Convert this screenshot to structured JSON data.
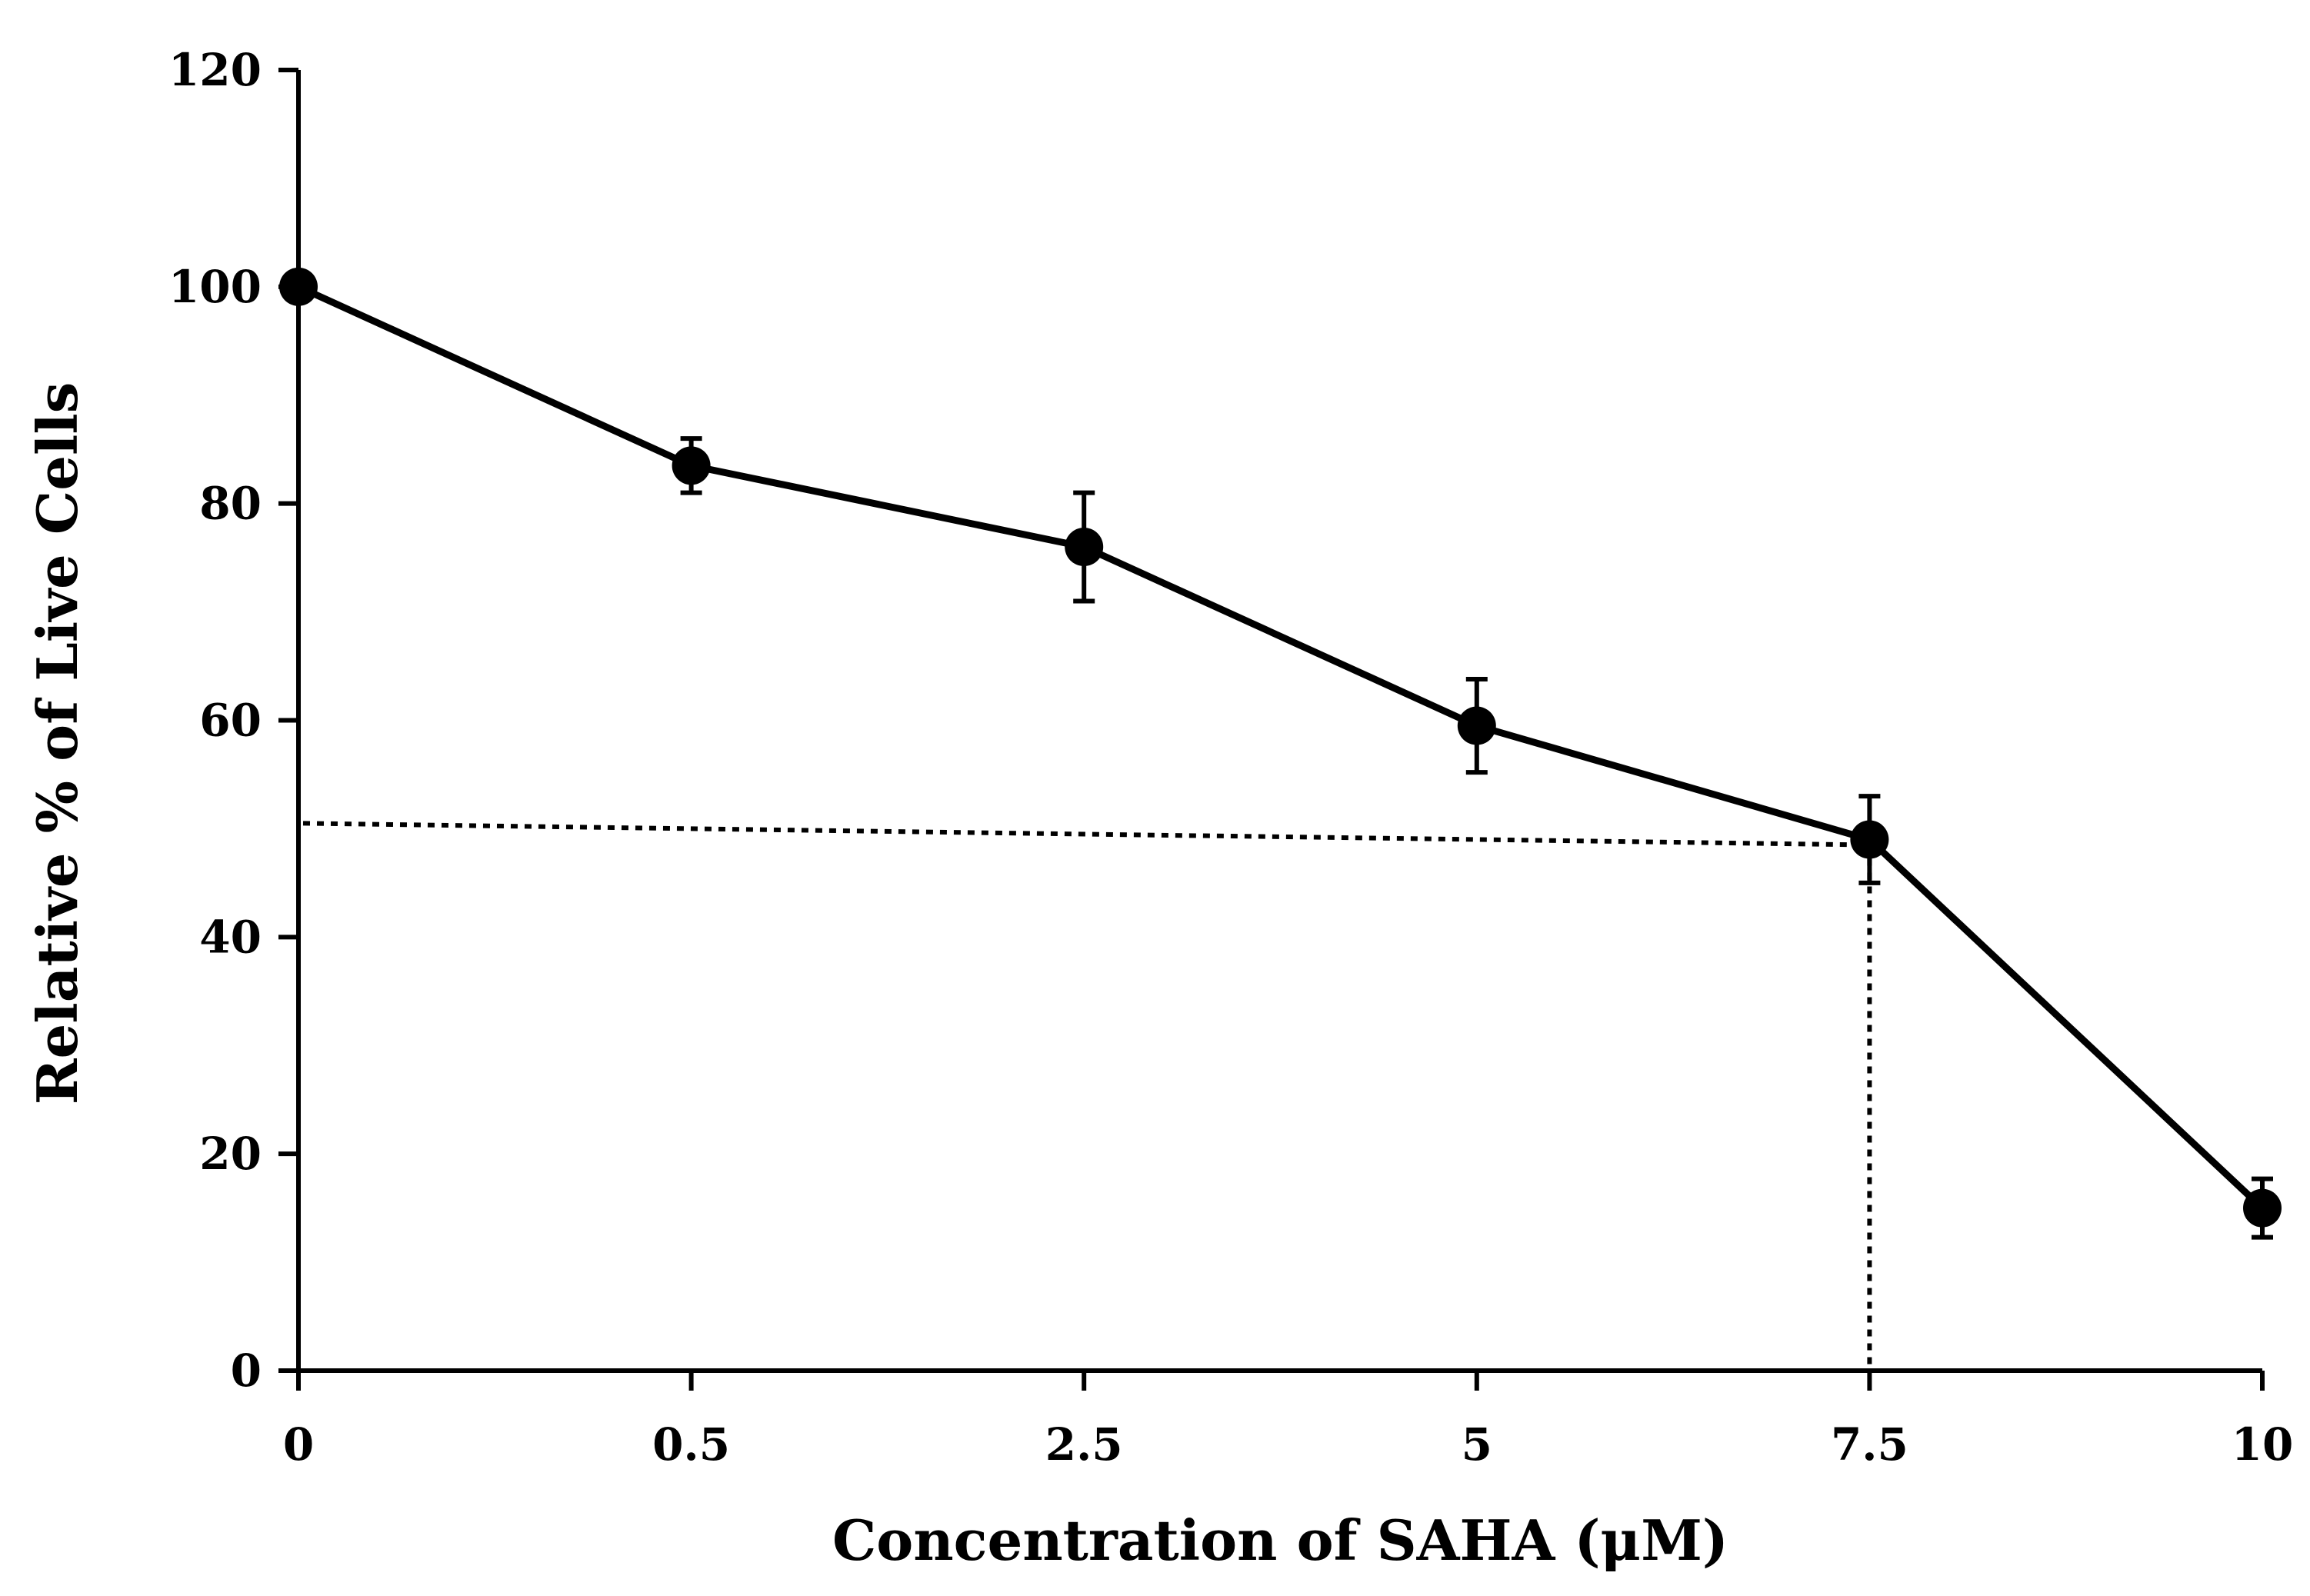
{
  "chart_data": {
    "type": "line",
    "title": "",
    "xlabel": "Concentration of SAHA (μM)",
    "ylabel": "Relative % of Live Cells",
    "x_ticks": [
      "0",
      "0.5",
      "2.5",
      "5",
      "7.5",
      "10"
    ],
    "y_ticks": [
      "0",
      "20",
      "40",
      "60",
      "80",
      "100",
      "120"
    ],
    "ylim": [
      0,
      120
    ],
    "grid": false,
    "legend": "none",
    "series": [
      {
        "name": "SAHA",
        "values": [
          100,
          83.5,
          76,
          59.5,
          49,
          15
        ],
        "errors": [
          0.5,
          2.5,
          5,
          4.3,
          4,
          2.7
        ]
      }
    ],
    "annotations": {
      "ic50_guide_y_start": 50.5,
      "ic50_guide_y_end": 48.5,
      "ic50_guide_x_category": "7.5",
      "style": "dotted"
    },
    "colors": {
      "line": "#000000",
      "marker": "#000000",
      "axis": "#000000",
      "guide": "#000000"
    }
  }
}
